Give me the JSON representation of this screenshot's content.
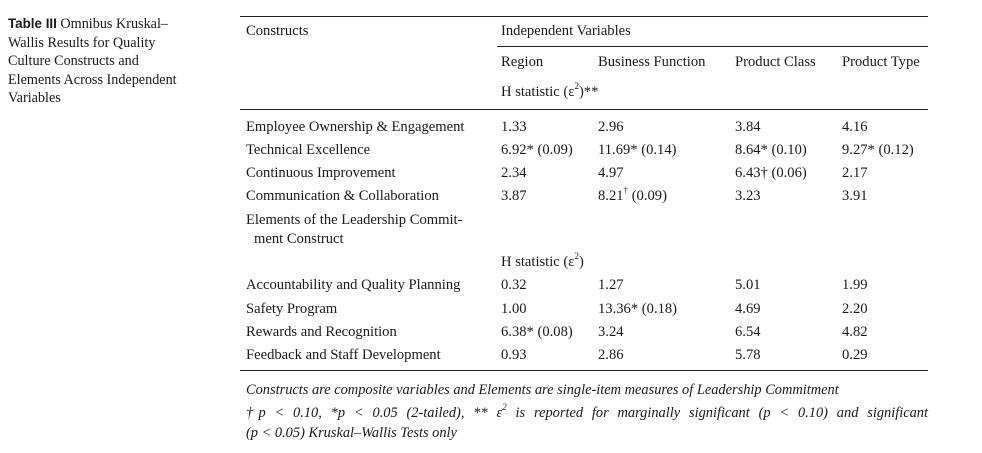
{
  "caption": {
    "label": "Table III",
    "text_lines": [
      "Omnibus Kruskal–",
      "Wallis Results for Quality",
      "Culture Constructs and",
      "Elements Across Independent",
      "Variables"
    ]
  },
  "header": {
    "constructs": "Constructs",
    "independent_variables": "Independent Variables",
    "columns": [
      "Region",
      "Business Function",
      "Product Class",
      "Product Type"
    ],
    "h_statistic": {
      "prefix": "H statistic (",
      "symbol": "ε",
      "power": "2",
      "suffix": ")**"
    }
  },
  "construct_rows": [
    {
      "name": "Employee Ownership & Engagement",
      "cells": [
        "1.33",
        "2.96",
        "3.84",
        "4.16"
      ]
    },
    {
      "name": "Technical Excellence",
      "cells": [
        "6.92* (0.09)",
        "11.69* (0.14)",
        "8.64* (0.10)",
        "9.27* (0.12)"
      ]
    },
    {
      "name": "Continuous Improvement",
      "cells": [
        "2.34",
        "4.97",
        "6.43† (0.06)",
        "2.17"
      ]
    },
    {
      "name": "Communication & Collaboration",
      "cells": [
        "3.87",
        "8.21",
        "3.23",
        "3.91"
      ]
    }
  ],
  "special": {
    "dagger": "†",
    "bf_comm_suffix": " (0.09)"
  },
  "elements_heading": {
    "line1": "Elements of the Leadership Commit-",
    "line2": "ment Construct"
  },
  "h_statistic_2": {
    "prefix": "H statistic (",
    "symbol": "ε",
    "power": "2",
    "suffix": ")"
  },
  "element_rows": [
    {
      "name": "Accountability and Quality Planning",
      "cells": [
        "0.32",
        "1.27",
        "5.01",
        "1.99"
      ]
    },
    {
      "name": "Safety Program",
      "cells": [
        "1.00",
        "13.36* (0.18)",
        "4.69",
        "2.20"
      ]
    },
    {
      "name": "Rewards and Recognition",
      "cells": [
        "6.38* (0.08)",
        "3.24",
        "6.54",
        "4.82"
      ]
    },
    {
      "name": "Feedback and Staff Development",
      "cells": [
        "0.93",
        "2.86",
        "5.78",
        "0.29"
      ]
    }
  ],
  "notes": {
    "line1": "Constructs are composite variables and Elements are single-item measures of Leadership Commitment",
    "line2_a": "†p < 0.10, *p < 0.05 (2-tailed), ** ε",
    "line2_sup": "2",
    "line2_b": " is reported for marginally significant (p < 0.10) and significant",
    "line3": "(p < 0.05) Kruskal–Wallis Tests only"
  }
}
